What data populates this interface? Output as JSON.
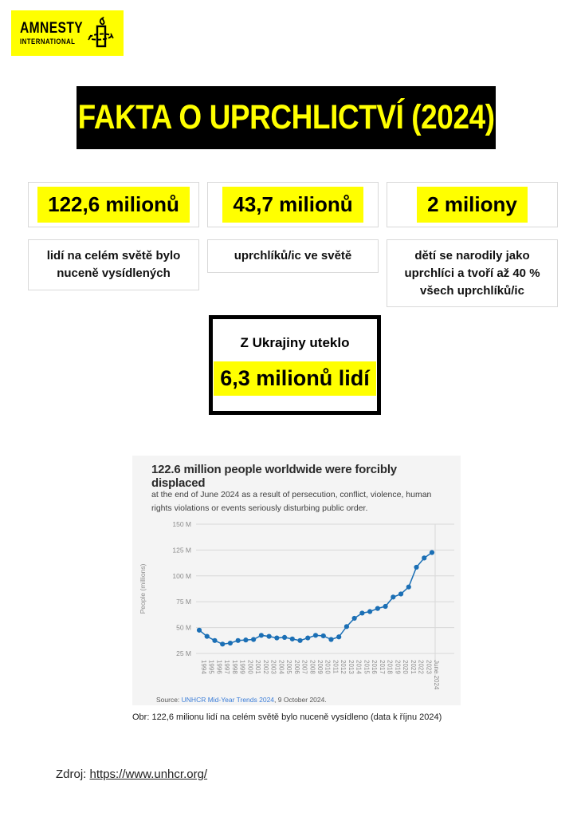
{
  "logo": {
    "line1": "AMNESTY",
    "line2": "INTERNATIONAL"
  },
  "title_banner": {
    "text": "FAKTA O UPRCHLICTVÍ (2024)"
  },
  "stats": [
    {
      "number": "122,6 milionů",
      "description": "lidí na celém světě bylo nuceně vysídlených"
    },
    {
      "number": "43,7 milionů",
      "description": "uprchlíků/ic ve světě"
    },
    {
      "number": "2 miliony",
      "description": "dětí se narodily jako uprchlíci a tvoří až 40 % všech uprchlíků/ic"
    }
  ],
  "ukraine_box": {
    "label": "Z Ukrajiny uteklo",
    "number": "6,3 milionů lidí"
  },
  "chart": {
    "title": "122.6 million people worldwide were forcibly displaced",
    "subtitle": "at the end of June 2024 as a result of persecution, conflict, violence, human rights violations or events seriously disturbing public order.",
    "source_prefix": "Source: ",
    "source_link": "UNHCR Mid-Year Trends 2024",
    "source_suffix": ", 9 October 2024."
  },
  "chart_data": {
    "type": "line",
    "title": "122.6 million people worldwide were forcibly displaced",
    "xlabel": "",
    "ylabel": "People (millions)",
    "x": [
      "1994",
      "1995",
      "1996",
      "1997",
      "1998",
      "1999",
      "2000",
      "2001",
      "2002",
      "2003",
      "2004",
      "2005",
      "2006",
      "2007",
      "2008",
      "2009",
      "2010",
      "2011",
      "2012",
      "2013",
      "2014",
      "2015",
      "2016",
      "2017",
      "2018",
      "2019",
      "2020",
      "2021",
      "2022",
      "2023",
      "June 2024"
    ],
    "values": [
      47.5,
      41.5,
      37.5,
      34,
      35,
      37.5,
      38,
      38.5,
      42.5,
      41.5,
      40,
      40.5,
      39,
      37.5,
      40,
      42.5,
      42,
      38.5,
      41,
      51,
      59,
      64,
      65.5,
      68.5,
      70.5,
      79.5,
      82.5,
      89.3,
      108.4,
      117.3,
      122.6
    ],
    "ytick_labels": [
      "25 M",
      "50 M",
      "75 M",
      "100 M",
      "125 M",
      "150 M"
    ],
    "ytick_values": [
      25,
      50,
      75,
      100,
      125,
      150
    ],
    "ylim": [
      25,
      150
    ],
    "grid": true,
    "legend": "none",
    "line_color": "#1b6fb5",
    "grid_color": "#d8d8d8",
    "axis_text_color": "#8c8c8c"
  },
  "figure_caption": "Obr: 122,6 milionu lidí na celém světě bylo nuceně vysídleno (data k říjnu 2024)",
  "footer": {
    "prefix": "Zdroj: ",
    "link": "https://www.unhcr.org/"
  },
  "colors": {
    "amnesty_yellow": "#FFFF00",
    "banner_bg": "#000000",
    "banner_text": "#FFFF00",
    "panel_bg": "#f4f4f4",
    "card_border": "#d9d9d9"
  }
}
